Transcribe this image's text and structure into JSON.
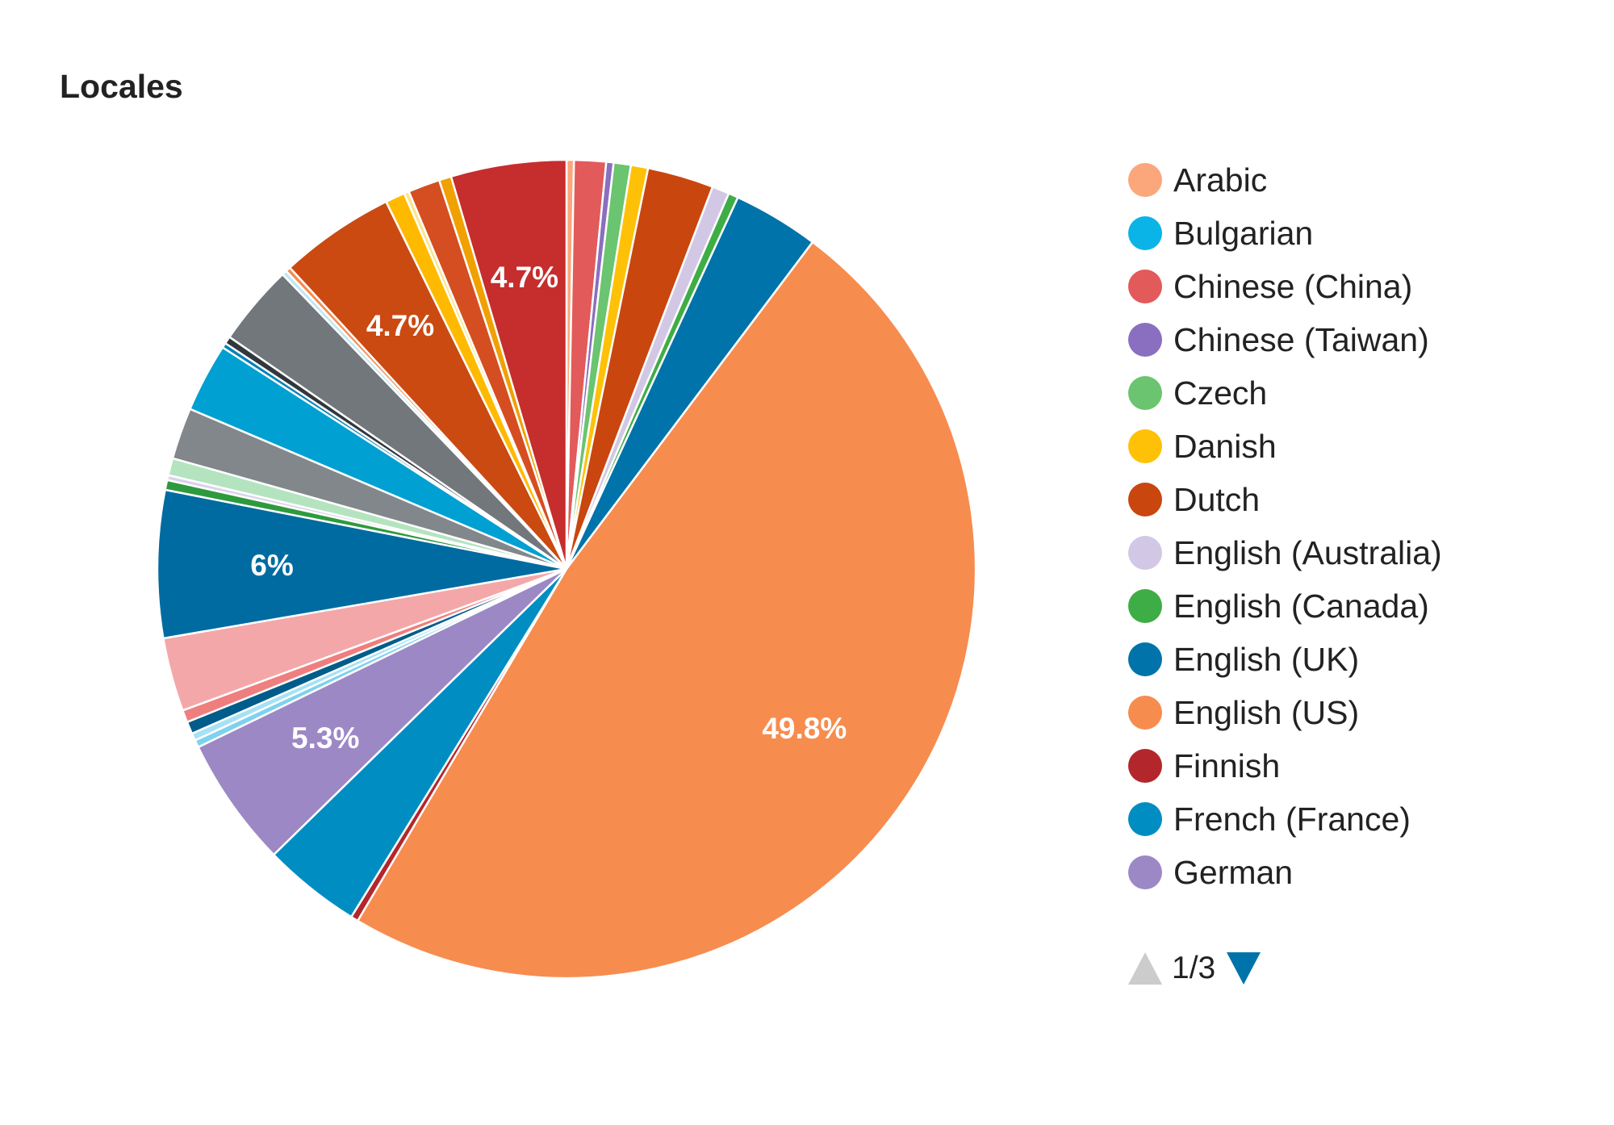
{
  "chart_data": {
    "type": "pie",
    "title": "Locales",
    "slices": [
      {
        "name": "Arabic",
        "value": 0.3,
        "color": "#fca67c"
      },
      {
        "name": "Chinese (China)",
        "value": 1.3,
        "color": "#e25a5a"
      },
      {
        "name": "Chinese (Taiwan)",
        "value": 0.3,
        "color": "#8a6fc0"
      },
      {
        "name": "Czech",
        "value": 0.7,
        "color": "#6bc46f"
      },
      {
        "name": "Danish",
        "value": 0.7,
        "color": "#ffc107"
      },
      {
        "name": "Dutch",
        "value": 2.7,
        "color": "#c9460f"
      },
      {
        "name": "English (Australia)",
        "value": 0.7,
        "color": "#d2c8e6"
      },
      {
        "name": "English (Canada)",
        "value": 0.4,
        "color": "#3fad46"
      },
      {
        "name": "English (UK)",
        "value": 3.5,
        "color": "#0073aa"
      },
      {
        "name": "English (US)",
        "value": 49.8,
        "color": "#f78c4f",
        "label": "49.8%"
      },
      {
        "name": "Finnish",
        "value": 0.3,
        "color": "#b3272c"
      },
      {
        "name": "French (France)",
        "value": 4.0,
        "color": "#008ec2"
      },
      {
        "name": "German",
        "value": 5.3,
        "color": "#9d88c6",
        "label": "5.3%"
      },
      {
        "name": "",
        "value": 0.3,
        "color": "#7fd1f0"
      },
      {
        "name": "",
        "value": 0.3,
        "color": "#a7e1f5"
      },
      {
        "name": "",
        "value": 0.5,
        "color": "#005c8a"
      },
      {
        "name": "",
        "value": 0.5,
        "color": "#ef7e7e"
      },
      {
        "name": "",
        "value": 3.0,
        "color": "#f4a7a9"
      },
      {
        "name": "",
        "value": 6.0,
        "color": "#006ba1",
        "label": "6%"
      },
      {
        "name": "",
        "value": 0.4,
        "color": "#2e9a3e"
      },
      {
        "name": "",
        "value": 0.2,
        "color": "#d9d2ea"
      },
      {
        "name": "",
        "value": 0.7,
        "color": "#b4e4bf"
      },
      {
        "name": "",
        "value": 2.1,
        "color": "#82878c"
      },
      {
        "name": "",
        "value": 2.8,
        "color": "#00a0d2"
      },
      {
        "name": "",
        "value": 0.2,
        "color": "#0080b8"
      },
      {
        "name": "",
        "value": 0.3,
        "color": "#32373c"
      },
      {
        "name": "",
        "value": 3.3,
        "color": "#72777c"
      },
      {
        "name": "",
        "value": 0.2,
        "color": "#bfe8f4"
      },
      {
        "name": "",
        "value": 0.2,
        "color": "#f78c4f"
      },
      {
        "name": "",
        "value": 4.7,
        "color": "#ca4a12",
        "label": "4.7%"
      },
      {
        "name": "",
        "value": 0.8,
        "color": "#ffba00"
      },
      {
        "name": "",
        "value": 0.2,
        "color": "#fbe58c"
      },
      {
        "name": "",
        "value": 1.3,
        "color": "#d54e21"
      },
      {
        "name": "",
        "value": 0.5,
        "color": "#f0a000"
      },
      {
        "name": "",
        "value": 4.7,
        "color": "#c62d2d",
        "label": "4.7%"
      }
    ],
    "legend": {
      "placement": "right",
      "page": "1/3",
      "items": [
        {
          "name": "Arabic",
          "color": "#fca67c"
        },
        {
          "name": "Bulgarian",
          "color": "#0ab4e6"
        },
        {
          "name": "Chinese (China)",
          "color": "#e25a5a"
        },
        {
          "name": "Chinese (Taiwan)",
          "color": "#8a6fc0"
        },
        {
          "name": "Czech",
          "color": "#6bc46f"
        },
        {
          "name": "Danish",
          "color": "#ffc107"
        },
        {
          "name": "Dutch",
          "color": "#c9460f"
        },
        {
          "name": "English (Australia)",
          "color": "#d2c8e6"
        },
        {
          "name": "English (Canada)",
          "color": "#3fad46"
        },
        {
          "name": "English (UK)",
          "color": "#0073aa"
        },
        {
          "name": "English (US)",
          "color": "#f78c4f"
        },
        {
          "name": "Finnish",
          "color": "#b3272c"
        },
        {
          "name": "French (France)",
          "color": "#008ec2"
        },
        {
          "name": "German",
          "color": "#9d88c6"
        }
      ]
    }
  }
}
